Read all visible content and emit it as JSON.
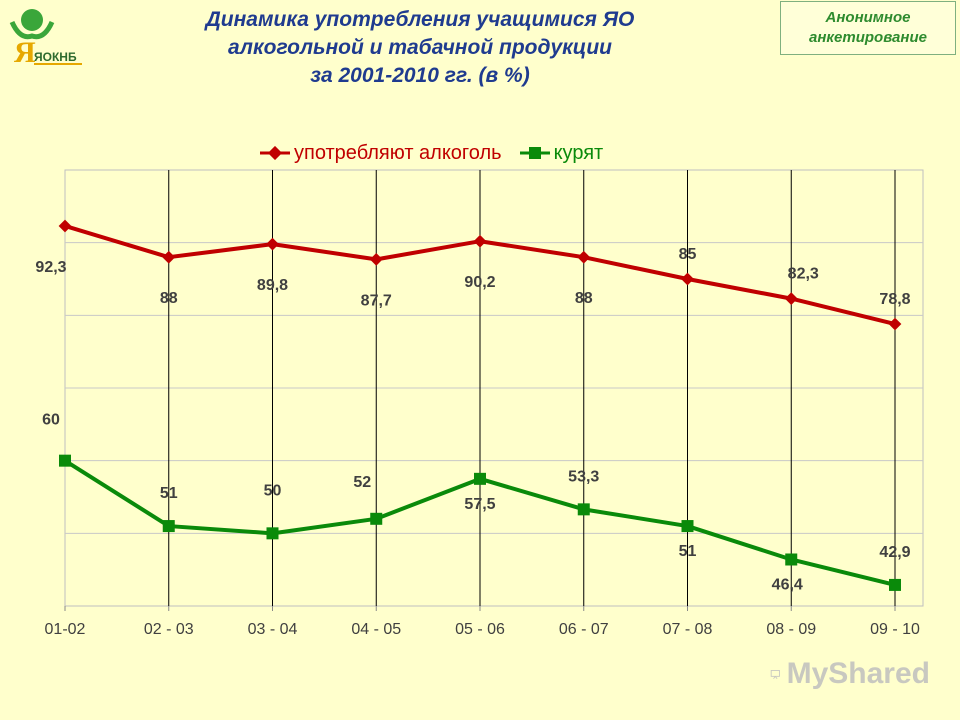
{
  "header": {
    "title_lines": [
      "Динамика употребления учащимися ЯО",
      "алкогольной и табачной продукции",
      "за 2001-2010 гг. (в %)"
    ],
    "badge_lines": [
      "Анонимное",
      "анкетирование"
    ],
    "logo_text": "ЯОКНБ"
  },
  "watermark": {
    "text": "MyShared"
  },
  "colors": {
    "background": "#ffffcc",
    "alcohol": "#c00000",
    "smoke": "#0a8a0a",
    "title": "#1f3b8f"
  },
  "chart_data": {
    "type": "line",
    "categories": [
      "01-02",
      "02 - 03",
      "03 - 04",
      "04 - 05",
      "05 - 06",
      "06 - 07",
      "07 - 08",
      "08 - 09",
      "09 - 10"
    ],
    "series": [
      {
        "name": "употребляют алкоголь",
        "values": [
          92.3,
          88,
          89.8,
          87.7,
          90.2,
          88,
          85,
          82.3,
          78.8
        ],
        "labels": [
          "92,3",
          "88",
          "89,8",
          "87,7",
          "90,2",
          "88",
          "85",
          "82,3",
          "78,8"
        ],
        "color": "#c00000",
        "marker": "diamond"
      },
      {
        "name": "курят",
        "values": [
          60,
          51,
          50,
          52,
          57.5,
          53.3,
          51,
          46.4,
          42.9
        ],
        "labels": [
          "60",
          "51",
          "50",
          "52",
          "57,5",
          "53,3",
          "51",
          "46,4",
          "42,9"
        ],
        "color": "#0a8a0a",
        "marker": "square"
      }
    ],
    "ylim": [
      40,
      100
    ],
    "grid": true,
    "legend": "top"
  }
}
